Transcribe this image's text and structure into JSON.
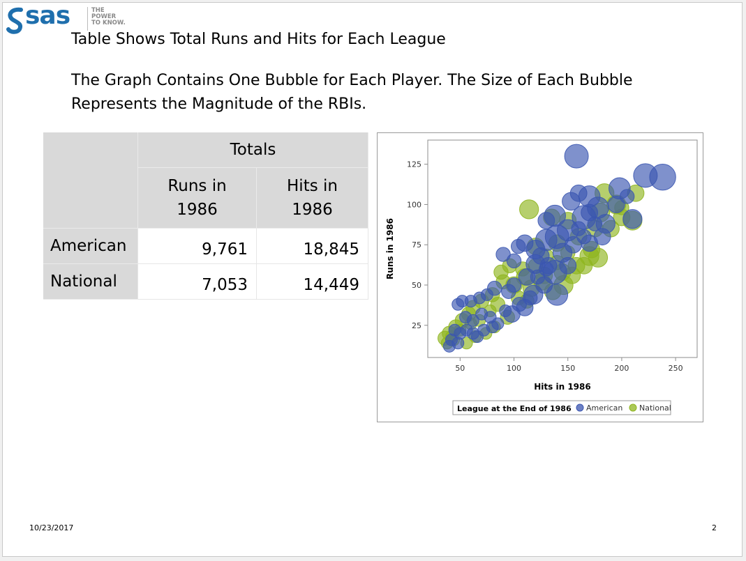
{
  "logo": {
    "brand": "sas",
    "tagline": [
      "THE",
      "POWER",
      "TO KNOW."
    ]
  },
  "bullets": [
    "Table Shows Total Runs and Hits for Each League",
    "The Graph Contains One Bubble for Each Player.  The Size of Each Bubble Represents the Magnitude of the RBIs."
  ],
  "table": {
    "group_header": "Totals",
    "columns": [
      "Runs in 1986",
      "Hits in 1986"
    ],
    "rows": [
      {
        "label": "American",
        "runs": "9,761",
        "hits": "18,845"
      },
      {
        "label": "National",
        "runs": "7,053",
        "hits": "14,449"
      }
    ]
  },
  "footer": {
    "date": "10/23/2017",
    "page": "2"
  },
  "chart_data": {
    "type": "scatter",
    "xlabel": "Hits in 1986",
    "ylabel": "Runs in 1986",
    "xlim": [
      20,
      270
    ],
    "ylim": [
      5,
      140
    ],
    "xticks": [
      50,
      100,
      150,
      200,
      250
    ],
    "yticks": [
      25,
      50,
      75,
      100,
      125
    ],
    "grid": false,
    "legend": {
      "title": "League at the End of 1986",
      "position": "bottom"
    },
    "colors": {
      "American": "#3b56b0",
      "National": "#8fb51f"
    },
    "series": [
      {
        "name": "American",
        "points": [
          [
            158,
            130,
            20
          ],
          [
            222,
            118,
            20
          ],
          [
            238,
            117,
            22
          ],
          [
            198,
            110,
            18
          ],
          [
            170,
            105,
            18
          ],
          [
            160,
            107,
            14
          ],
          [
            153,
            102,
            15
          ],
          [
            178,
            98,
            18
          ],
          [
            170,
            95,
            14
          ],
          [
            138,
            93,
            18
          ],
          [
            130,
            90,
            14
          ],
          [
            165,
            92,
            20
          ],
          [
            185,
            88,
            16
          ],
          [
            210,
            91,
            16
          ],
          [
            182,
            80,
            14
          ],
          [
            150,
            84,
            18
          ],
          [
            140,
            80,
            20
          ],
          [
            130,
            78,
            18
          ],
          [
            120,
            72,
            16
          ],
          [
            110,
            76,
            14
          ],
          [
            104,
            74,
            12
          ],
          [
            90,
            69,
            12
          ],
          [
            100,
            65,
            12
          ],
          [
            120,
            63,
            16
          ],
          [
            130,
            60,
            12
          ],
          [
            138,
            58,
            20
          ],
          [
            150,
            62,
            14
          ],
          [
            170,
            76,
            14
          ],
          [
            165,
            80,
            12
          ],
          [
            145,
            70,
            16
          ],
          [
            112,
            55,
            14
          ],
          [
            100,
            50,
            12
          ],
          [
            95,
            46,
            12
          ],
          [
            82,
            48,
            12
          ],
          [
            75,
            44,
            10
          ],
          [
            68,
            42,
            10
          ],
          [
            60,
            40,
            10
          ],
          [
            52,
            40,
            10
          ],
          [
            48,
            38,
            10
          ],
          [
            55,
            30,
            10
          ],
          [
            62,
            28,
            10
          ],
          [
            70,
            32,
            10
          ],
          [
            78,
            30,
            10
          ],
          [
            85,
            26,
            10
          ],
          [
            98,
            32,
            14
          ],
          [
            110,
            36,
            14
          ],
          [
            118,
            44,
            16
          ],
          [
            128,
            50,
            14
          ],
          [
            140,
            44,
            18
          ],
          [
            132,
            62,
            14
          ],
          [
            125,
            68,
            14
          ],
          [
            62,
            20,
            10
          ],
          [
            56,
            22,
            10
          ],
          [
            50,
            20,
            10
          ],
          [
            45,
            22,
            10
          ],
          [
            42,
            16,
            10
          ],
          [
            40,
            12,
            10
          ],
          [
            48,
            14,
            10
          ],
          [
            66,
            18,
            10
          ],
          [
            72,
            22,
            10
          ],
          [
            80,
            24,
            10
          ],
          [
            92,
            34,
            10
          ],
          [
            105,
            38,
            12
          ],
          [
            115,
            42,
            12
          ],
          [
            122,
            55,
            12
          ],
          [
            155,
            75,
            14
          ],
          [
            160,
            85,
            12
          ],
          [
            175,
            88,
            12
          ],
          [
            195,
            100,
            14
          ],
          [
            205,
            105,
            12
          ]
        ]
      },
      {
        "name": "National",
        "points": [
          [
            184,
            107,
            16
          ],
          [
            213,
            107,
            14
          ],
          [
            195,
            100,
            16
          ],
          [
            180,
            95,
            16
          ],
          [
            200,
            92,
            14
          ],
          [
            210,
            90,
            16
          ],
          [
            114,
            97,
            16
          ],
          [
            135,
            92,
            14
          ],
          [
            150,
            90,
            14
          ],
          [
            175,
            85,
            14
          ],
          [
            160,
            80,
            14
          ],
          [
            140,
            76,
            14
          ],
          [
            120,
            74,
            14
          ],
          [
            170,
            68,
            16
          ],
          [
            178,
            67,
            16
          ],
          [
            158,
            62,
            14
          ],
          [
            145,
            58,
            14
          ],
          [
            128,
            56,
            14
          ],
          [
            110,
            55,
            14
          ],
          [
            100,
            50,
            14
          ],
          [
            90,
            52,
            12
          ],
          [
            80,
            44,
            12
          ],
          [
            85,
            38,
            12
          ],
          [
            70,
            40,
            12
          ],
          [
            62,
            36,
            12
          ],
          [
            58,
            32,
            12
          ],
          [
            52,
            28,
            12
          ],
          [
            46,
            24,
            12
          ],
          [
            40,
            20,
            12
          ],
          [
            36,
            17,
            12
          ],
          [
            38,
            14,
            10
          ],
          [
            44,
            16,
            10
          ],
          [
            56,
            14,
            10
          ],
          [
            64,
            18,
            10
          ],
          [
            74,
            20,
            10
          ],
          [
            82,
            24,
            10
          ],
          [
            94,
            30,
            12
          ],
          [
            104,
            42,
            12
          ],
          [
            116,
            48,
            14
          ],
          [
            126,
            52,
            14
          ],
          [
            136,
            46,
            14
          ],
          [
            146,
            50,
            16
          ],
          [
            154,
            56,
            14
          ],
          [
            165,
            62,
            14
          ],
          [
            172,
            72,
            14
          ],
          [
            130,
            68,
            12
          ],
          [
            120,
            62,
            12
          ],
          [
            108,
            60,
            12
          ],
          [
            96,
            62,
            12
          ],
          [
            88,
            58,
            12
          ],
          [
            78,
            34,
            10
          ],
          [
            68,
            28,
            10
          ],
          [
            60,
            26,
            10
          ],
          [
            50,
            22,
            10
          ],
          [
            42,
            18,
            10
          ],
          [
            190,
            85,
            14
          ],
          [
            200,
            98,
            12
          ],
          [
            150,
            70,
            12
          ],
          [
            140,
            64,
            12
          ],
          [
            112,
            40,
            12
          ]
        ]
      }
    ]
  }
}
